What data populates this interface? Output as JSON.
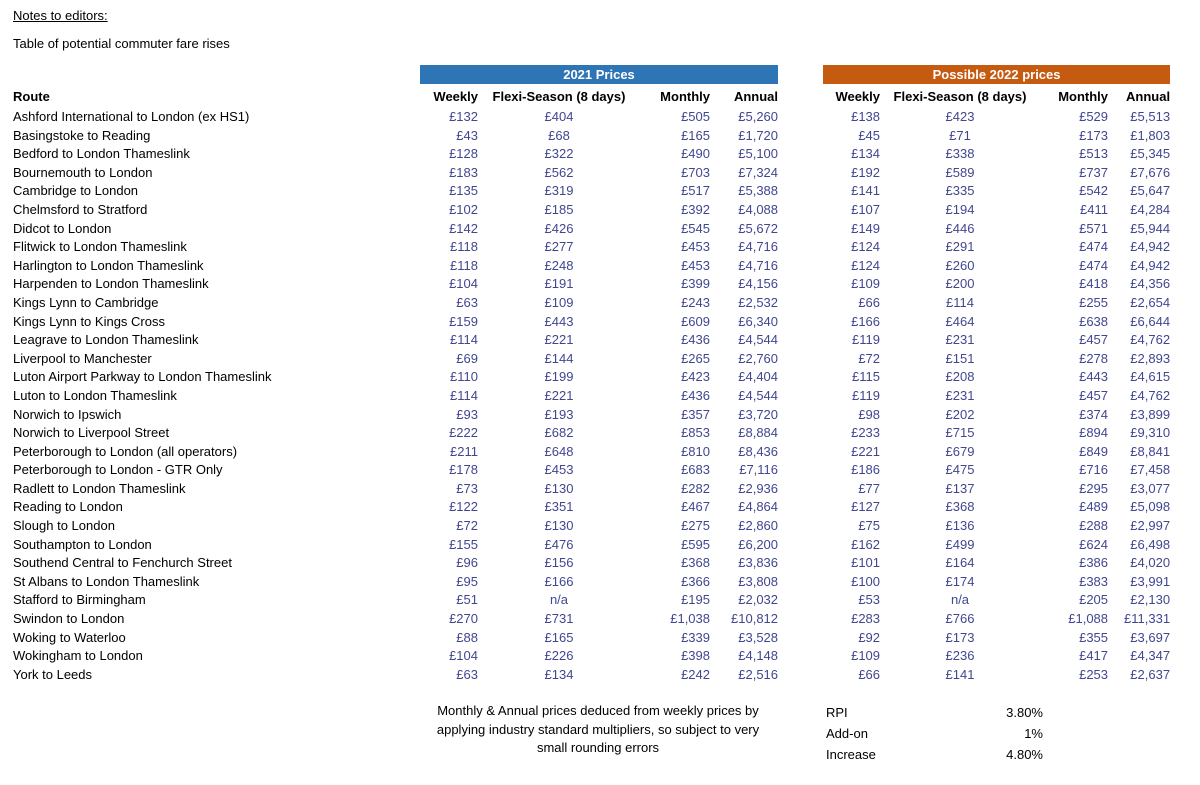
{
  "header": {
    "notes_heading": "Notes to editors:",
    "subtitle": "Table of potential commuter fare rises"
  },
  "table": {
    "group_2021_label": "2021 Prices",
    "group_2022_label": "Possible 2022 prices",
    "group_2021_color": "#2E75B6",
    "group_2022_color": "#C55A11",
    "value_text_color": "#414690",
    "route_header": "Route",
    "columns": [
      "Weekly",
      "Flexi-Season (8 days)",
      "Monthly",
      "Annual"
    ],
    "rows": [
      {
        "route": "Ashford International to London (ex HS1)",
        "prices_2021": [
          "£132",
          "£404",
          "£505",
          "£5,260"
        ],
        "prices_2022": [
          "£138",
          "£423",
          "£529",
          "£5,513"
        ]
      },
      {
        "route": "Basingstoke to Reading",
        "prices_2021": [
          "£43",
          "£68",
          "£165",
          "£1,720"
        ],
        "prices_2022": [
          "£45",
          "£71",
          "£173",
          "£1,803"
        ]
      },
      {
        "route": "Bedford to London Thameslink",
        "prices_2021": [
          "£128",
          "£322",
          "£490",
          "£5,100"
        ],
        "prices_2022": [
          "£134",
          "£338",
          "£513",
          "£5,345"
        ]
      },
      {
        "route": "Bournemouth to London",
        "prices_2021": [
          "£183",
          "£562",
          "£703",
          "£7,324"
        ],
        "prices_2022": [
          "£192",
          "£589",
          "£737",
          "£7,676"
        ]
      },
      {
        "route": "Cambridge to London",
        "prices_2021": [
          "£135",
          "£319",
          "£517",
          "£5,388"
        ],
        "prices_2022": [
          "£141",
          "£335",
          "£542",
          "£5,647"
        ]
      },
      {
        "route": "Chelmsford to Stratford",
        "prices_2021": [
          "£102",
          "£185",
          "£392",
          "£4,088"
        ],
        "prices_2022": [
          "£107",
          "£194",
          "£411",
          "£4,284"
        ]
      },
      {
        "route": "Didcot to London",
        "prices_2021": [
          "£142",
          "£426",
          "£545",
          "£5,672"
        ],
        "prices_2022": [
          "£149",
          "£446",
          "£571",
          "£5,944"
        ]
      },
      {
        "route": "Flitwick to London Thameslink",
        "prices_2021": [
          "£118",
          "£277",
          "£453",
          "£4,716"
        ],
        "prices_2022": [
          "£124",
          "£291",
          "£474",
          "£4,942"
        ]
      },
      {
        "route": "Harlington to London Thameslink",
        "prices_2021": [
          "£118",
          "£248",
          "£453",
          "£4,716"
        ],
        "prices_2022": [
          "£124",
          "£260",
          "£474",
          "£4,942"
        ]
      },
      {
        "route": "Harpenden to London Thameslink",
        "prices_2021": [
          "£104",
          "£191",
          "£399",
          "£4,156"
        ],
        "prices_2022": [
          "£109",
          "£200",
          "£418",
          "£4,356"
        ]
      },
      {
        "route": "Kings Lynn to Cambridge",
        "prices_2021": [
          "£63",
          "£109",
          "£243",
          "£2,532"
        ],
        "prices_2022": [
          "£66",
          "£114",
          "£255",
          "£2,654"
        ]
      },
      {
        "route": "Kings Lynn to Kings Cross",
        "prices_2021": [
          "£159",
          "£443",
          "£609",
          "£6,340"
        ],
        "prices_2022": [
          "£166",
          "£464",
          "£638",
          "£6,644"
        ]
      },
      {
        "route": "Leagrave to London Thameslink",
        "prices_2021": [
          "£114",
          "£221",
          "£436",
          "£4,544"
        ],
        "prices_2022": [
          "£119",
          "£231",
          "£457",
          "£4,762"
        ]
      },
      {
        "route": "Liverpool to Manchester",
        "prices_2021": [
          "£69",
          "£144",
          "£265",
          "£2,760"
        ],
        "prices_2022": [
          "£72",
          "£151",
          "£278",
          "£2,893"
        ]
      },
      {
        "route": "Luton Airport Parkway to London Thameslink",
        "prices_2021": [
          "£110",
          "£199",
          "£423",
          "£4,404"
        ],
        "prices_2022": [
          "£115",
          "£208",
          "£443",
          "£4,615"
        ]
      },
      {
        "route": "Luton to London Thameslink",
        "prices_2021": [
          "£114",
          "£221",
          "£436",
          "£4,544"
        ],
        "prices_2022": [
          "£119",
          "£231",
          "£457",
          "£4,762"
        ]
      },
      {
        "route": "Norwich to Ipswich",
        "prices_2021": [
          "£93",
          "£193",
          "£357",
          "£3,720"
        ],
        "prices_2022": [
          "£98",
          "£202",
          "£374",
          "£3,899"
        ]
      },
      {
        "route": "Norwich to Liverpool Street",
        "prices_2021": [
          "£222",
          "£682",
          "£853",
          "£8,884"
        ],
        "prices_2022": [
          "£233",
          "£715",
          "£894",
          "£9,310"
        ]
      },
      {
        "route": "Peterborough to London (all operators)",
        "prices_2021": [
          "£211",
          "£648",
          "£810",
          "£8,436"
        ],
        "prices_2022": [
          "£221",
          "£679",
          "£849",
          "£8,841"
        ]
      },
      {
        "route": "Peterborough to London - GTR Only",
        "prices_2021": [
          "£178",
          "£453",
          "£683",
          "£7,116"
        ],
        "prices_2022": [
          "£186",
          "£475",
          "£716",
          "£7,458"
        ]
      },
      {
        "route": "Radlett to London Thameslink",
        "prices_2021": [
          "£73",
          "£130",
          "£282",
          "£2,936"
        ],
        "prices_2022": [
          "£77",
          "£137",
          "£295",
          "£3,077"
        ]
      },
      {
        "route": "Reading to London",
        "prices_2021": [
          "£122",
          "£351",
          "£467",
          "£4,864"
        ],
        "prices_2022": [
          "£127",
          "£368",
          "£489",
          "£5,098"
        ]
      },
      {
        "route": "Slough to London",
        "prices_2021": [
          "£72",
          "£130",
          "£275",
          "£2,860"
        ],
        "prices_2022": [
          "£75",
          "£136",
          "£288",
          "£2,997"
        ]
      },
      {
        "route": "Southampton to London",
        "prices_2021": [
          "£155",
          "£476",
          "£595",
          "£6,200"
        ],
        "prices_2022": [
          "£162",
          "£499",
          "£624",
          "£6,498"
        ]
      },
      {
        "route": "Southend Central to Fenchurch Street",
        "prices_2021": [
          "£96",
          "£156",
          "£368",
          "£3,836"
        ],
        "prices_2022": [
          "£101",
          "£164",
          "£386",
          "£4,020"
        ]
      },
      {
        "route": "St Albans to London Thameslink",
        "prices_2021": [
          "£95",
          "£166",
          "£366",
          "£3,808"
        ],
        "prices_2022": [
          "£100",
          "£174",
          "£383",
          "£3,991"
        ]
      },
      {
        "route": "Stafford to Birmingham",
        "prices_2021": [
          "£51",
          "n/a",
          "£195",
          "£2,032"
        ],
        "prices_2022": [
          "£53",
          "n/a",
          "£205",
          "£2,130"
        ]
      },
      {
        "route": "Swindon to London",
        "prices_2021": [
          "£270",
          "£731",
          "£1,038",
          "£10,812"
        ],
        "prices_2022": [
          "£283",
          "£766",
          "£1,088",
          "£11,331"
        ]
      },
      {
        "route": "Woking to Waterloo",
        "prices_2021": [
          "£88",
          "£165",
          "£339",
          "£3,528"
        ],
        "prices_2022": [
          "£92",
          "£173",
          "£355",
          "£3,697"
        ]
      },
      {
        "route": "Wokingham to London",
        "prices_2021": [
          "£104",
          "£226",
          "£398",
          "£4,148"
        ],
        "prices_2022": [
          "£109",
          "£236",
          "£417",
          "£4,347"
        ]
      },
      {
        "route": "York to Leeds",
        "prices_2021": [
          "£63",
          "£134",
          "£242",
          "£2,516"
        ],
        "prices_2022": [
          "£66",
          "£141",
          "£253",
          "£2,637"
        ]
      }
    ]
  },
  "footnote": {
    "text": "Monthly & Annual prices deduced from weekly prices by applying industry standard multipliers, so subject to very small rounding errors"
  },
  "stats": [
    {
      "label": "RPI",
      "value": "3.80%"
    },
    {
      "label": "Add-on",
      "value": "1%"
    },
    {
      "label": "Increase",
      "value": "4.80%"
    }
  ]
}
